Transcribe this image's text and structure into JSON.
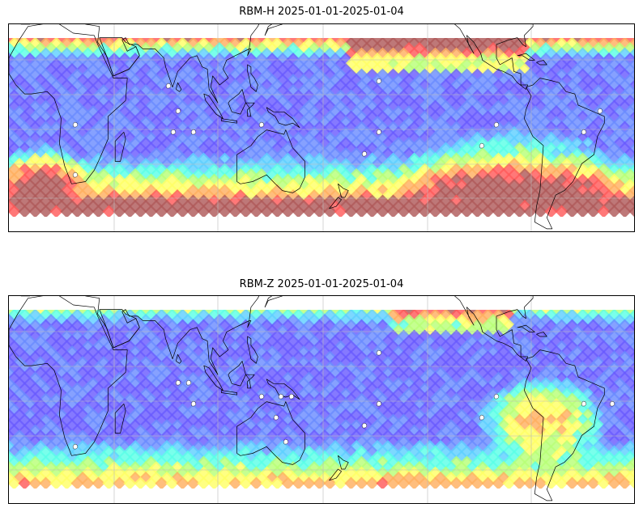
{
  "figure": {
    "panels": [
      {
        "title": "RBM-H 2025-01-01-2025-01-04",
        "variant": "H"
      },
      {
        "title": "RBM-Z 2025-01-01-2025-01-04",
        "variant": "Z"
      }
    ],
    "colormap": [
      "#6a5cff",
      "#6b8cff",
      "#5fd0ff",
      "#5cffe6",
      "#b8ff78",
      "#ffff66",
      "#ffb060",
      "#ff5a5a",
      "#b05a5a"
    ],
    "ocean_color": "#ffffff",
    "coast_color": "#000000",
    "grid_color": "#bbbbbb"
  }
}
